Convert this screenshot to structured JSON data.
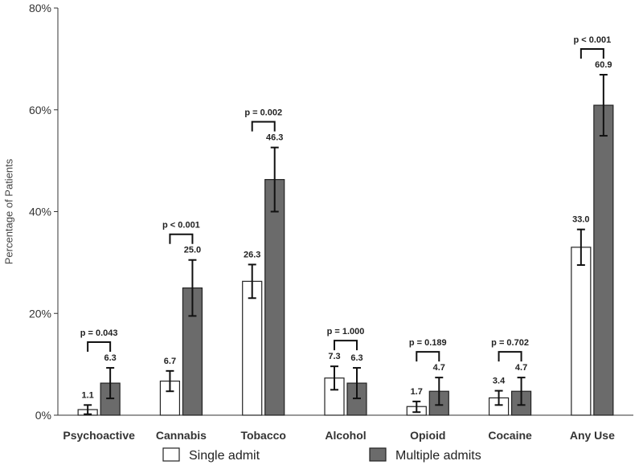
{
  "chart_data": {
    "type": "bar",
    "title": "",
    "xlabel": "",
    "ylabel": "Percentage of Patients",
    "ylim": [
      0,
      80
    ],
    "y_ticks": [
      0,
      20,
      40,
      60,
      80
    ],
    "y_tick_labels": [
      "0%",
      "20%",
      "40%",
      "60%",
      "80%"
    ],
    "categories": [
      "Psychoactive",
      "Cannabis",
      "Tobacco",
      "Alcohol",
      "Opioid",
      "Cocaine",
      "Any Use"
    ],
    "series": [
      {
        "name": "Single admit",
        "color": "#ffffff",
        "values": [
          1.1,
          6.7,
          26.3,
          7.3,
          1.7,
          3.4,
          33.0
        ],
        "labels": [
          "1.1",
          "6.7",
          "26.3",
          "7.3",
          "1.7",
          "3.4",
          "33.0"
        ],
        "error_low": [
          0.2,
          4.7,
          23.0,
          5.0,
          0.6,
          2.0,
          29.5
        ],
        "error_high": [
          2.0,
          8.7,
          29.6,
          9.6,
          2.7,
          4.8,
          36.5
        ]
      },
      {
        "name": "Multiple admits",
        "color": "#6b6b6b",
        "values": [
          6.3,
          25.0,
          46.3,
          6.3,
          4.7,
          4.7,
          60.9
        ],
        "labels": [
          "6.3",
          "25.0",
          "46.3",
          "6.3",
          "4.7",
          "4.7",
          "60.9"
        ],
        "error_low": [
          3.3,
          19.5,
          40.0,
          3.3,
          2.0,
          2.0,
          54.9
        ],
        "error_high": [
          9.3,
          30.5,
          52.6,
          9.3,
          7.4,
          7.4,
          66.9
        ]
      }
    ],
    "p_values": [
      "p = 0.043",
      "p < 0.001",
      "p = 0.002",
      "p = 1.000",
      "p = 0.189",
      "p = 0.702",
      "p < 0.001"
    ],
    "legend": {
      "position": "bottom"
    }
  }
}
